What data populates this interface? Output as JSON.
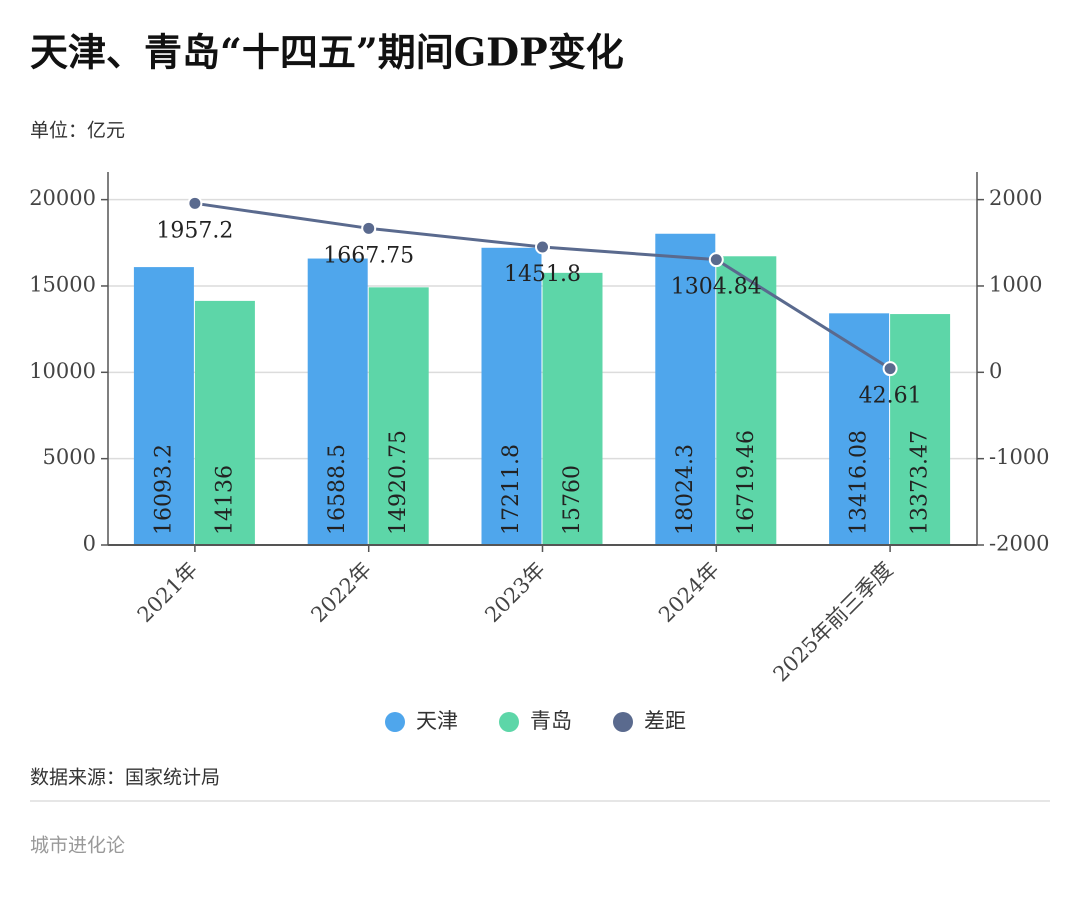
{
  "chart_data": {
    "type": "bar",
    "title": "天津、青岛“十四五”期间GDP变化",
    "unit": "单位：亿元",
    "source": "数据来源：国家统计局",
    "brand": "城市进化论",
    "categories": [
      "2021年",
      "2022年",
      "2023年",
      "2024年",
      "2025年前三季度"
    ],
    "series": [
      {
        "name": "天津",
        "color": "#4fa6ec",
        "values": [
          16093.2,
          16588.5,
          17211.8,
          18024.3,
          13416.08
        ]
      },
      {
        "name": "青岛",
        "color": "#5dd6a8",
        "values": [
          14136,
          14920.75,
          15760,
          16719.46,
          13373.47
        ]
      },
      {
        "name": "差距",
        "color": "#5a6a8e",
        "type": "line",
        "axis": "y2",
        "values": [
          1957.2,
          1667.75,
          1451.8,
          1304.84,
          42.61
        ]
      }
    ],
    "ylim": [
      0,
      21600
    ],
    "yticks": [
      0,
      5000,
      10000,
      15000,
      20000
    ],
    "y2lim": [
      -2000,
      2320
    ],
    "y2ticks": [
      -2000,
      -1000,
      0,
      1000,
      2000
    ],
    "grid": true,
    "legend": "bottom"
  }
}
